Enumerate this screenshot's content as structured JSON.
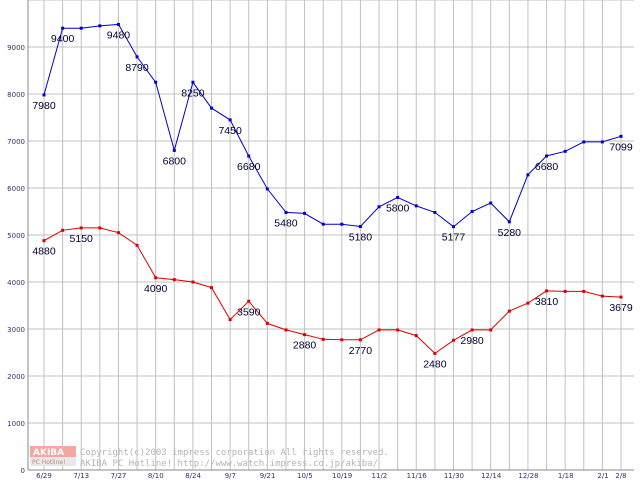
{
  "chart_data": {
    "type": "line",
    "title": "",
    "xlabel": "",
    "ylabel": "",
    "ylim": [
      0,
      10000
    ],
    "yticks": [
      "0",
      "1000",
      "2000",
      "3000",
      "4000",
      "5000",
      "6000",
      "7000",
      "8000",
      "9000"
    ],
    "grid": true,
    "x_tick_labels": [
      "6/29",
      "7/13",
      "7/27",
      "8/10",
      "8/24",
      "9/7",
      "9/21",
      "10/5",
      "10/19",
      "11/2",
      "11/16",
      "11/30",
      "12/14",
      "12/28",
      "1/18",
      "2/1",
      "2/8"
    ],
    "series": [
      {
        "color": "#0000cc",
        "values": [
          7980,
          9400,
          9400,
          9450,
          9480,
          8790,
          8250,
          6800,
          8250,
          7700,
          7450,
          6680,
          5980,
          5480,
          5460,
          5230,
          5230,
          5180,
          5600,
          5800,
          5620,
          5480,
          5177,
          5500,
          5680,
          5280,
          6280,
          6680,
          6780,
          6980,
          6980,
          7099
        ],
        "labels": [
          {
            "index": 0,
            "text": "7980"
          },
          {
            "index": 1,
            "text": "9400"
          },
          {
            "index": 4,
            "text": "9480"
          },
          {
            "index": 5,
            "text": "8790"
          },
          {
            "index": 7,
            "text": "6800"
          },
          {
            "index": 8,
            "text": "8250"
          },
          {
            "index": 10,
            "text": "7450"
          },
          {
            "index": 11,
            "text": "6680"
          },
          {
            "index": 13,
            "text": "5480"
          },
          {
            "index": 17,
            "text": "5180"
          },
          {
            "index": 19,
            "text": "5800"
          },
          {
            "index": 22,
            "text": "5177"
          },
          {
            "index": 25,
            "text": "5280"
          },
          {
            "index": 27,
            "text": "6680"
          },
          {
            "index": 31,
            "text": "7099"
          }
        ]
      },
      {
        "color": "#dd0000",
        "values": [
          4880,
          5100,
          5150,
          5150,
          5050,
          4780,
          4090,
          4050,
          4000,
          3880,
          3200,
          3590,
          3120,
          2980,
          2880,
          2780,
          2770,
          2770,
          2980,
          2980,
          2860,
          2480,
          2760,
          2980,
          2980,
          3380,
          3550,
          3810,
          3800,
          3800,
          3700,
          3679
        ],
        "labels": [
          {
            "index": 0,
            "text": "4880"
          },
          {
            "index": 2,
            "text": "5150"
          },
          {
            "index": 6,
            "text": "4090"
          },
          {
            "index": 11,
            "text": "3590"
          },
          {
            "index": 14,
            "text": "2880"
          },
          {
            "index": 17,
            "text": "2770"
          },
          {
            "index": 21,
            "text": "2480"
          },
          {
            "index": 23,
            "text": "2980"
          },
          {
            "index": 27,
            "text": "3810"
          },
          {
            "index": 31,
            "text": "3679"
          }
        ]
      }
    ]
  },
  "watermark": {
    "logo_top": "AKIBA",
    "logo_bottom": "PC Hotline!",
    "line1": "Copyright(c)2003 impress corporation All rights reserved.",
    "line2": "AKIBA PC Hotline!  http://www.watch.impress.co.jp/akiba/"
  }
}
